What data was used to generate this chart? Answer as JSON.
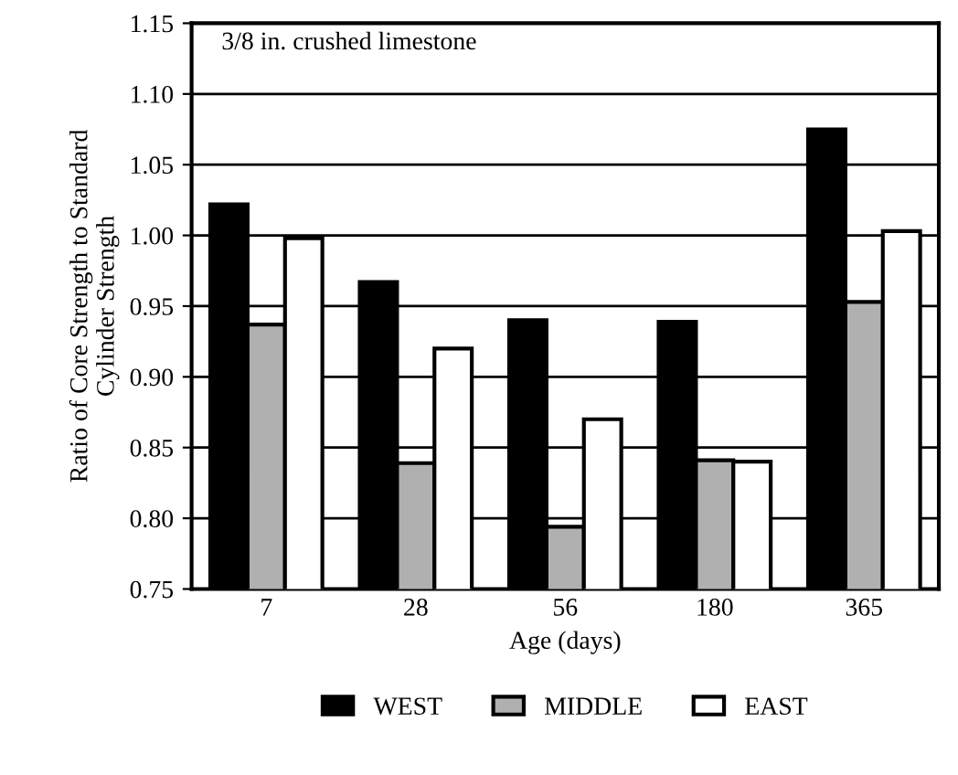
{
  "chart_data": {
    "type": "bar",
    "xlabel": "Age (days)",
    "ylabel": "Ratio of Core Strength to Standard\nCylinder Strength",
    "categories": [
      "7",
      "28",
      "56",
      "180",
      "365"
    ],
    "series": [
      {
        "name": "WEST",
        "color": "#000000",
        "values": [
          1.022,
          0.967,
          0.94,
          0.939,
          1.075
        ]
      },
      {
        "name": "MIDDLE",
        "color": "#b0b0b0",
        "values": [
          0.937,
          0.839,
          0.794,
          0.841,
          0.953
        ]
      },
      {
        "name": "EAST",
        "color": "#ffffff",
        "values": [
          0.998,
          0.92,
          0.87,
          0.84,
          1.003
        ]
      }
    ],
    "ylim": [
      0.75,
      1.15
    ],
    "yticks": [
      {
        "value": 0.75,
        "label": "0.75"
      },
      {
        "value": 0.8,
        "label": "0.80"
      },
      {
        "value": 0.85,
        "label": "0.85"
      },
      {
        "value": 0.9,
        "label": "0.90"
      },
      {
        "value": 0.95,
        "label": "0.95"
      },
      {
        "value": 1.0,
        "label": "1.00"
      },
      {
        "value": 1.05,
        "label": "1.05"
      },
      {
        "value": 1.1,
        "label": "1.10"
      },
      {
        "value": 1.15,
        "label": "1.15"
      }
    ],
    "grid": "y",
    "legend": "bottom",
    "annotations": [
      "3/8 in. crushed limestone"
    ]
  }
}
